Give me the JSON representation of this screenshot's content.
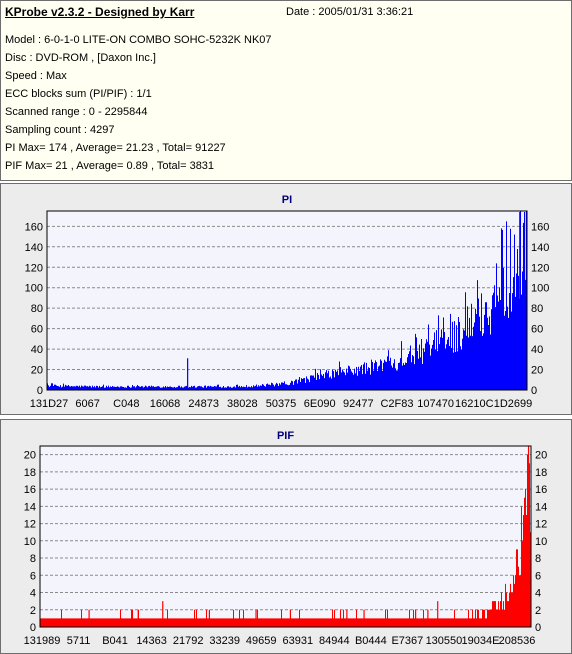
{
  "header": {
    "title": "KProbe v2.3.2 - Designed by Karr",
    "date": "Date : 2005/01/31 3:36:21",
    "lines": [
      "Model : 6-0-1-0 LITE-ON COMBO SOHC-5232K NK07",
      "Disc : DVD-ROM ,  [Daxon Inc.]",
      "Speed : Max",
      "ECC blocks sum (PI/PIF) : 1/1",
      "Scanned range : 0 - 2295844",
      "Sampling count : 4297",
      "PI Max= 174 , Average= 21.23 , Total= 91227",
      "PIF Max= 21 , Average= 0.89 , Total= 3831"
    ]
  },
  "chart_data": [
    {
      "type": "bar",
      "title": "PI",
      "color": "#0000ff",
      "ylim": [
        0,
        175
      ],
      "yticks": [
        0,
        20,
        40,
        60,
        80,
        100,
        120,
        140,
        160
      ],
      "xtick_labels": [
        "131D27",
        "6067",
        "C048",
        "16068",
        "24873",
        "38028",
        "50375",
        "6E090",
        "92477",
        "C2F83",
        "107470",
        "16210C",
        "1D2699"
      ],
      "grid": true,
      "max": 174,
      "average": 21.23,
      "envelope_x": [
        0,
        0.1,
        0.2,
        0.3,
        0.4,
        0.5,
        0.55,
        0.6,
        0.65,
        0.7,
        0.75,
        0.8,
        0.85,
        0.9,
        0.93,
        0.96,
        0.98,
        1.0
      ],
      "envelope_y": [
        5,
        4,
        4,
        4,
        4,
        7,
        14,
        20,
        24,
        30,
        38,
        50,
        65,
        85,
        100,
        125,
        150,
        170
      ],
      "spikes": [
        {
          "x": 0.293,
          "y": 31
        },
        {
          "x": 0.985,
          "y": 174
        },
        {
          "x": 0.995,
          "y": 174
        }
      ]
    },
    {
      "type": "bar",
      "title": "PIF",
      "color": "#ff0000",
      "ylim": [
        0,
        21
      ],
      "yticks": [
        0,
        2,
        4,
        6,
        8,
        10,
        12,
        14,
        16,
        18,
        20
      ],
      "xtick_labels": [
        "131989",
        "5711",
        "B041",
        "14363",
        "21792",
        "33239",
        "49659",
        "63931",
        "84944",
        "B0444",
        "E7367",
        "130550",
        "19034E",
        "208536"
      ],
      "grid": true,
      "max": 21,
      "average": 0.89,
      "envelope_x": [
        0,
        0.85,
        0.9,
        0.93,
        0.95,
        0.97,
        0.98,
        0.99,
        1.0
      ],
      "envelope_y": [
        1,
        1,
        1.5,
        2.5,
        4,
        7,
        10,
        14,
        18
      ],
      "spikes": [
        {
          "x": 0.25,
          "y": 3
        },
        {
          "x": 0.1,
          "y": 2
        },
        {
          "x": 0.2,
          "y": 2
        },
        {
          "x": 0.345,
          "y": 2
        },
        {
          "x": 0.44,
          "y": 2
        },
        {
          "x": 0.51,
          "y": 2
        },
        {
          "x": 0.625,
          "y": 2
        },
        {
          "x": 0.66,
          "y": 2
        },
        {
          "x": 0.765,
          "y": 2
        },
        {
          "x": 0.79,
          "y": 2
        },
        {
          "x": 0.81,
          "y": 3
        },
        {
          "x": 0.995,
          "y": 21
        }
      ]
    }
  ]
}
